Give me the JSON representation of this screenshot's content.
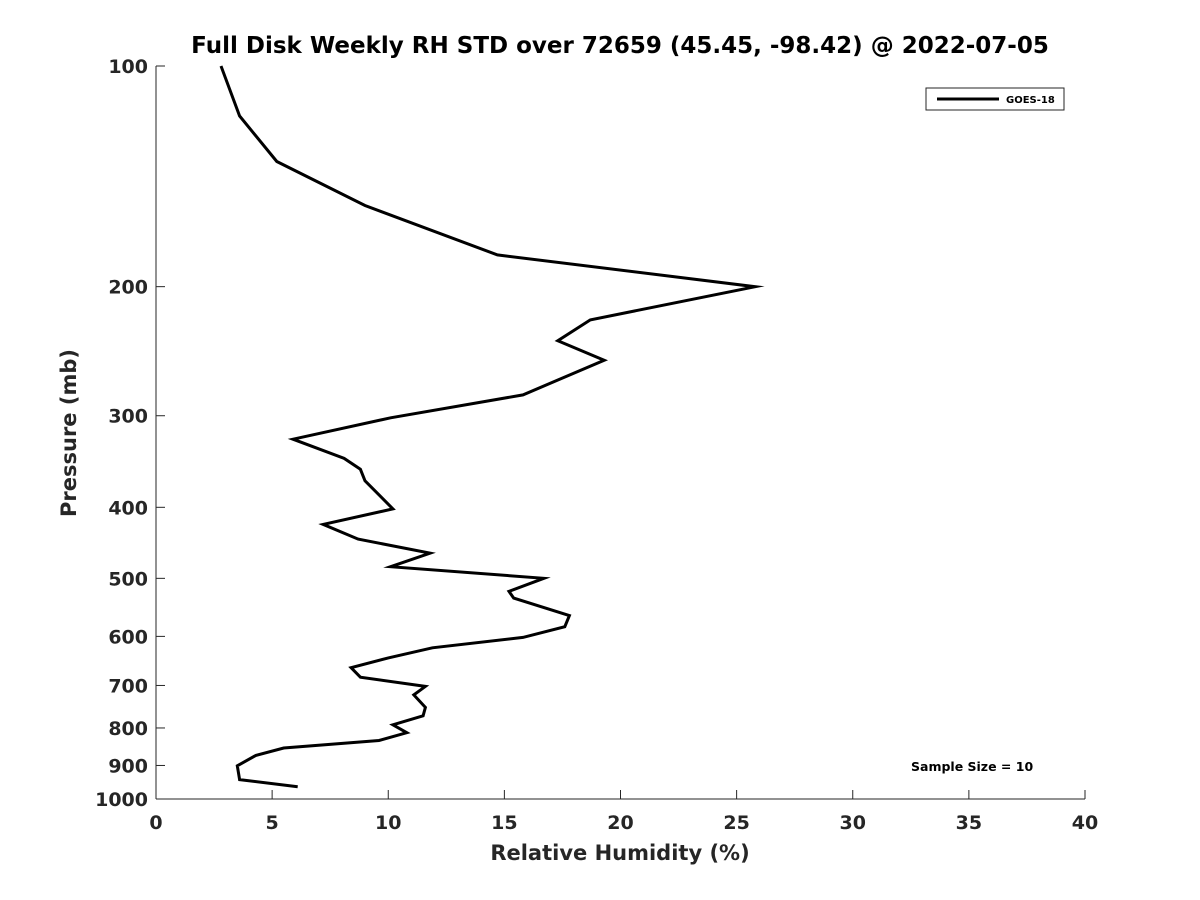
{
  "chart_data": {
    "type": "line",
    "title": "Full Disk Weekly RH STD over 72659 (45.45, -98.42) @ 2022-07-05",
    "xlabel": "Relative Humidity (%)",
    "ylabel": "Pressure (mb)",
    "xlim": [
      0,
      40
    ],
    "ylim": [
      100,
      1000
    ],
    "y_scale": "log",
    "y_reversed": true,
    "xticks": [
      0,
      5,
      10,
      15,
      20,
      25,
      30,
      35,
      40
    ],
    "xtick_labels": [
      "0",
      "5",
      "10",
      "15",
      "20",
      "25",
      "30",
      "35",
      "40"
    ],
    "yticks": [
      100,
      200,
      300,
      400,
      500,
      600,
      700,
      800,
      900,
      1000
    ],
    "ytick_labels": [
      "100",
      "200",
      "300",
      "400",
      "500",
      "600",
      "700",
      "800",
      "900",
      "1000"
    ],
    "grid": false,
    "legend": {
      "position": "top-right",
      "entries": [
        "GOES-18"
      ]
    },
    "annotation": "Sample Size = 10",
    "series": [
      {
        "name": "GOES-18",
        "color": "#000000",
        "points": [
          [
            2.8,
            100
          ],
          [
            3.6,
            117
          ],
          [
            5.2,
            135
          ],
          [
            9.0,
            155
          ],
          [
            14.7,
            181
          ],
          [
            25.8,
            200
          ],
          [
            18.7,
            222
          ],
          [
            17.3,
            237
          ],
          [
            19.3,
            252
          ],
          [
            15.8,
            281
          ],
          [
            10.1,
            302
          ],
          [
            5.9,
            323
          ],
          [
            8.1,
            343
          ],
          [
            8.8,
            355
          ],
          [
            9.0,
            368
          ],
          [
            10.2,
            402
          ],
          [
            7.2,
            422
          ],
          [
            8.7,
            442
          ],
          [
            11.8,
            462
          ],
          [
            10.1,
            482
          ],
          [
            16.7,
            500
          ],
          [
            15.2,
            521
          ],
          [
            15.4,
            532
          ],
          [
            17.8,
            562
          ],
          [
            17.6,
            582
          ],
          [
            15.8,
            602
          ],
          [
            11.9,
            622
          ],
          [
            10.0,
            642
          ],
          [
            8.4,
            662
          ],
          [
            8.8,
            682
          ],
          [
            11.6,
            702
          ],
          [
            11.1,
            721
          ],
          [
            11.6,
            750
          ],
          [
            11.5,
            770
          ],
          [
            10.2,
            792
          ],
          [
            10.8,
            812
          ],
          [
            9.6,
            832
          ],
          [
            5.5,
            852
          ],
          [
            4.3,
            872
          ],
          [
            3.5,
            901
          ],
          [
            3.6,
            941
          ],
          [
            6.1,
            962
          ]
        ]
      }
    ]
  }
}
